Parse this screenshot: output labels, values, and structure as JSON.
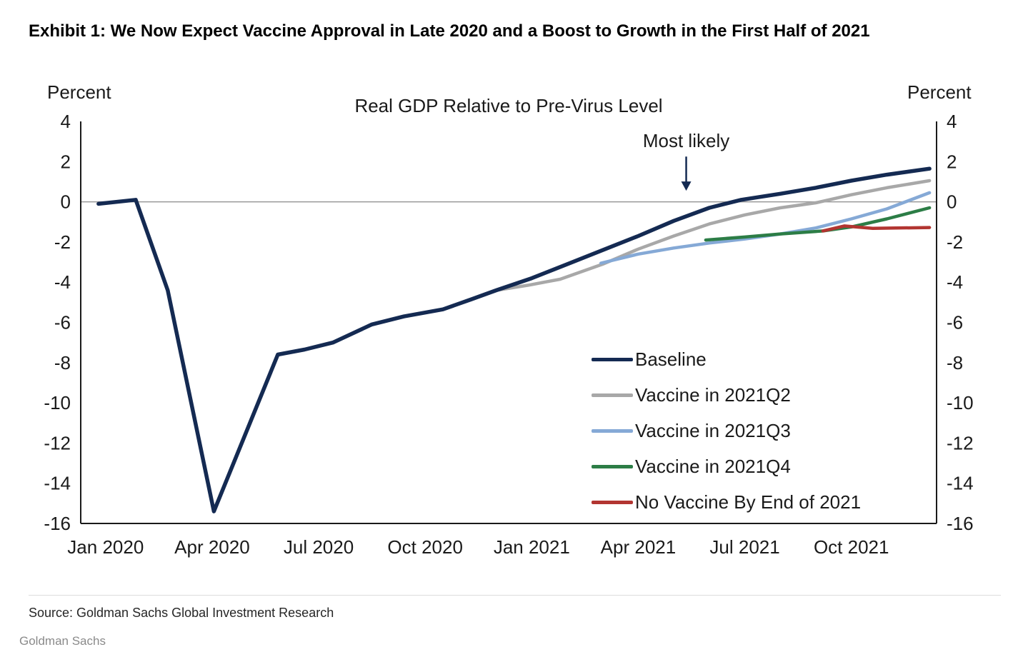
{
  "page": {
    "exhibit_title": "Exhibit 1: We Now Expect Vaccine Approval in Late 2020 and a Boost to Growth in the First Half of 2021",
    "source_text": "Source: Goldman Sachs Global Investment Research",
    "brand": "Goldman Sachs"
  },
  "chart_data": {
    "type": "line",
    "title": "Real GDP Relative to Pre-Virus Level",
    "ylabel_left": "Percent",
    "ylabel_right": "Percent",
    "ylim": [
      -16,
      4
    ],
    "y_ticks": [
      4,
      2,
      0,
      -2,
      -4,
      -6,
      -8,
      -10,
      -12,
      -14,
      -16
    ],
    "x_domain_months": [
      -0.7,
      23.4
    ],
    "x_ticks": [
      {
        "month": 0,
        "label": "Jan 2020"
      },
      {
        "month": 3,
        "label": "Apr 2020"
      },
      {
        "month": 6,
        "label": "Jul 2020"
      },
      {
        "month": 9,
        "label": "Oct 2020"
      },
      {
        "month": 12,
        "label": "Jan 2021"
      },
      {
        "month": 15,
        "label": "Apr 2021"
      },
      {
        "month": 18,
        "label": "Jul 2021"
      },
      {
        "month": 21,
        "label": "Oct 2021"
      }
    ],
    "grid": "zero-line-only",
    "zero_line": 0,
    "legend_position": "middle-right",
    "annotation": {
      "label": "Most likely",
      "x_month": 16.35,
      "label_value": 3.0,
      "arrow_from_value": 2.25,
      "arrow_to_value": 0.55,
      "color": "#142a52"
    },
    "axis_color": "#1a1a1a",
    "zero_line_color": "#999999",
    "series": [
      {
        "name": "Baseline",
        "color": "#142a52",
        "stroke_width": 5.5,
        "points": [
          [
            -0.2,
            -0.1
          ],
          [
            0.85,
            0.1
          ],
          [
            1.75,
            -4.4
          ],
          [
            3.05,
            -15.4
          ],
          [
            4.85,
            -7.6
          ],
          [
            5.6,
            -7.35
          ],
          [
            6.4,
            -7.0
          ],
          [
            7.5,
            -6.1
          ],
          [
            8.4,
            -5.7
          ],
          [
            9.5,
            -5.35
          ],
          [
            10.3,
            -4.85
          ],
          [
            11,
            -4.4
          ],
          [
            12,
            -3.8
          ],
          [
            13,
            -3.1
          ],
          [
            14,
            -2.4
          ],
          [
            15,
            -1.7
          ],
          [
            16,
            -0.95
          ],
          [
            17,
            -0.3
          ],
          [
            17.9,
            0.1
          ],
          [
            19,
            0.4
          ],
          [
            20,
            0.7
          ],
          [
            21,
            1.05
          ],
          [
            22,
            1.35
          ],
          [
            23.2,
            1.65
          ]
        ]
      },
      {
        "name": "Vaccine in 2021Q2",
        "color": "#a8a8a8",
        "stroke_width": 4.5,
        "points": [
          [
            11,
            -4.4
          ],
          [
            11.9,
            -4.15
          ],
          [
            12.8,
            -3.85
          ],
          [
            14,
            -3.1
          ],
          [
            15,
            -2.35
          ],
          [
            16,
            -1.7
          ],
          [
            17,
            -1.1
          ],
          [
            18,
            -0.65
          ],
          [
            19,
            -0.3
          ],
          [
            20,
            -0.05
          ],
          [
            21,
            0.35
          ],
          [
            22,
            0.7
          ],
          [
            23.2,
            1.05
          ]
        ]
      },
      {
        "name": "Vaccine in 2021Q3",
        "color": "#85a9d6",
        "stroke_width": 4.5,
        "points": [
          [
            13.95,
            -3.05
          ],
          [
            15,
            -2.6
          ],
          [
            16,
            -2.3
          ],
          [
            17,
            -2.05
          ],
          [
            18,
            -1.85
          ],
          [
            19,
            -1.6
          ],
          [
            20,
            -1.3
          ],
          [
            21,
            -0.85
          ],
          [
            22,
            -0.35
          ],
          [
            23.2,
            0.45
          ]
        ]
      },
      {
        "name": "Vaccine in 2021Q4",
        "color": "#2c7d46",
        "stroke_width": 4.5,
        "points": [
          [
            16.9,
            -1.9
          ],
          [
            18,
            -1.75
          ],
          [
            19,
            -1.6
          ],
          [
            20.2,
            -1.45
          ],
          [
            21,
            -1.25
          ],
          [
            22,
            -0.85
          ],
          [
            23.2,
            -0.3
          ]
        ]
      },
      {
        "name": "No Vaccine By End of 2021",
        "color": "#b23531",
        "stroke_width": 4.5,
        "points": [
          [
            20.2,
            -1.45
          ],
          [
            20.8,
            -1.2
          ],
          [
            21.6,
            -1.32
          ],
          [
            23.2,
            -1.28
          ]
        ]
      }
    ]
  }
}
